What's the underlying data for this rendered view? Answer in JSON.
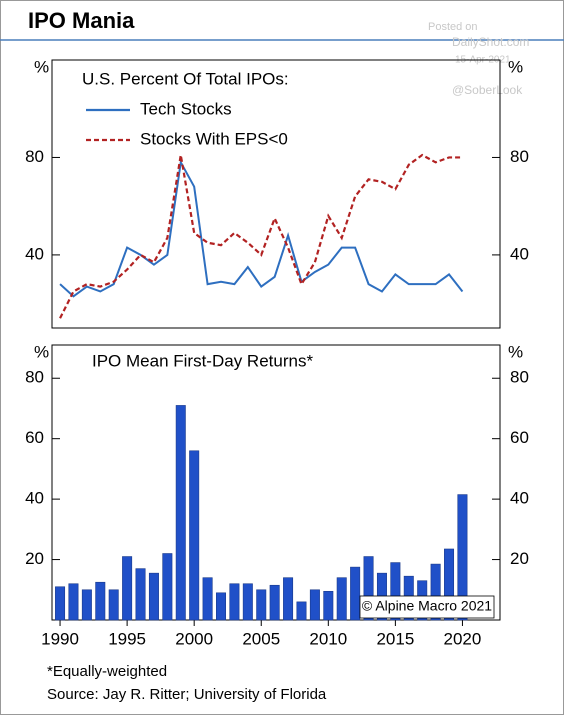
{
  "header": {
    "title": "IPO Mania"
  },
  "watermark": [
    "Posted on",
    "DailyShot.com",
    "15-Apr-2021",
    "@SoberLook"
  ],
  "chart_data": [
    {
      "type": "line",
      "title": "U.S. Percent Of Total IPOs:",
      "ylabel": "%",
      "x": [
        1990,
        1991,
        1992,
        1993,
        1994,
        1995,
        1996,
        1997,
        1998,
        1999,
        2000,
        2001,
        2002,
        2003,
        2004,
        2005,
        2006,
        2007,
        2008,
        2009,
        2010,
        2011,
        2012,
        2013,
        2014,
        2015,
        2016,
        2017,
        2018,
        2019,
        2020
      ],
      "series": [
        {
          "name": "Tech Stocks",
          "color": "#2e6fc0",
          "style": "solid",
          "values": [
            28,
            23,
            27,
            25,
            28,
            43,
            40,
            36,
            40,
            78,
            68,
            28,
            29,
            28,
            35,
            27,
            31,
            48,
            29,
            33,
            36,
            43,
            43,
            28,
            25,
            32,
            28,
            28,
            28,
            32,
            25
          ]
        },
        {
          "name": "Stocks With EPS<0",
          "color": "#b22222",
          "style": "dashed",
          "values": [
            14,
            25,
            28,
            27,
            29,
            34,
            40,
            37,
            47,
            81,
            49,
            45,
            44,
            49,
            45,
            40,
            55,
            43,
            28,
            37,
            56,
            47,
            64,
            71,
            70,
            67,
            77,
            81,
            78,
            80,
            80
          ]
        }
      ],
      "xlim": [
        1989.4,
        2022.8
      ],
      "ylim": [
        10,
        120
      ],
      "yticks": [
        40,
        80
      ]
    },
    {
      "type": "bar",
      "title": "IPO Mean First-Day Returns*",
      "ylabel": "%",
      "color": "#2050c8",
      "x": [
        1990,
        1991,
        1992,
        1993,
        1994,
        1995,
        1996,
        1997,
        1998,
        1999,
        2000,
        2001,
        2002,
        2003,
        2004,
        2005,
        2006,
        2007,
        2008,
        2009,
        2010,
        2011,
        2012,
        2013,
        2014,
        2015,
        2016,
        2017,
        2018,
        2019,
        2020
      ],
      "values": [
        11,
        12,
        10,
        12.5,
        10,
        21,
        17,
        15.5,
        22,
        71,
        56,
        14,
        9,
        12,
        12,
        10,
        11.5,
        14,
        6,
        10,
        9.5,
        14,
        17.5,
        21,
        15.5,
        19,
        14.5,
        13,
        18.5,
        23.5,
        41.5
      ],
      "xlim": [
        1989.4,
        2022.8
      ],
      "xticks": [
        1990,
        1995,
        2000,
        2005,
        2010,
        2015,
        2020
      ],
      "ylim": [
        0,
        91
      ],
      "yticks": [
        20,
        40,
        60,
        80
      ],
      "annotation": "© Alpine Macro 2021"
    }
  ],
  "footnotes": [
    "*Equally-weighted",
    "Source: Jay R. Ritter; University of Florida"
  ]
}
